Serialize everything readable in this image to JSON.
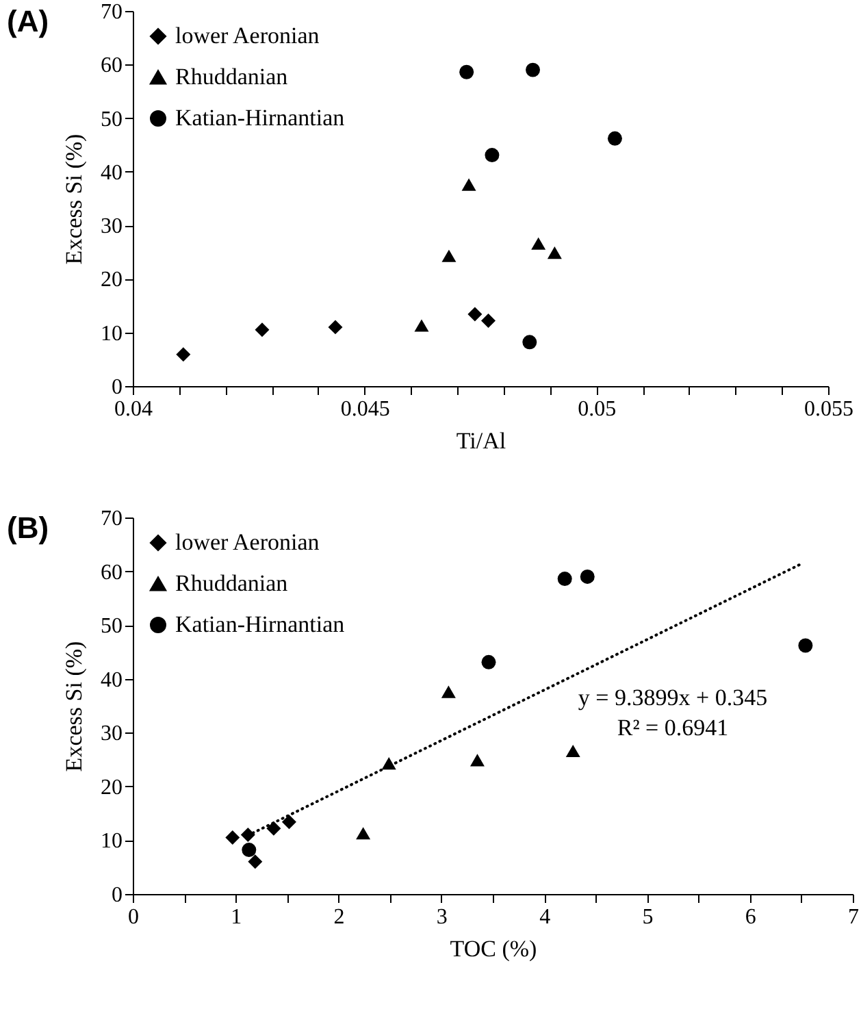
{
  "chart_data": [
    {
      "type": "scatter",
      "title": "(A)",
      "xlabel": "Ti/Al",
      "ylabel": "Excess Si (%)",
      "legend": "top left",
      "grid": false,
      "xlim": [
        0.04,
        0.055
      ],
      "xticks": [
        0.04,
        {
          "value": 0.041,
          "label": null
        },
        {
          "value": 0.042,
          "label": null
        },
        {
          "value": 0.043,
          "label": null
        },
        {
          "value": 0.044,
          "label": null
        },
        0.045,
        {
          "value": 0.046,
          "label": null
        },
        {
          "value": 0.047,
          "label": null
        },
        {
          "value": 0.048,
          "label": null
        },
        {
          "value": 0.049,
          "label": null
        },
        0.05,
        {
          "value": 0.051,
          "label": null
        },
        {
          "value": 0.052,
          "label": null
        },
        {
          "value": 0.053,
          "label": null
        },
        {
          "value": 0.054,
          "label": null
        },
        0.055
      ],
      "ylim": [
        0,
        70
      ],
      "yticks": [
        0,
        10,
        20,
        30,
        40,
        50,
        60,
        70
      ],
      "series": [
        {
          "name": "lower Aeronian",
          "color": "#000000",
          "marker": "diamond",
          "x": [
            0.04109,
            0.04279,
            0.04437,
            0.04738,
            0.04767
          ],
          "values": [
            5.9,
            10.5,
            11.0,
            13.4,
            12.2
          ]
        },
        {
          "name": "Rhuddanian",
          "color": "#000000",
          "marker": "triangle",
          "x": [
            0.04623,
            0.04682,
            0.04725,
            0.04875,
            0.0491
          ],
          "values": [
            11.3,
            24.3,
            37.6,
            26.6,
            24.9
          ]
        },
        {
          "name": "Katian-Hirnantian",
          "color": "#000000",
          "marker": "circle",
          "x": [
            0.0472,
            0.04863,
            0.04775,
            0.0504,
            0.04856
          ],
          "values": [
            58.6,
            59.0,
            43.1,
            46.2,
            8.2
          ]
        }
      ]
    },
    {
      "type": "scatter",
      "title": "(B)",
      "xlabel": "TOC (%)",
      "ylabel": "Excess Si (%)",
      "legend": "top left",
      "grid": false,
      "xlim": [
        0,
        7
      ],
      "xticks": [
        0,
        {
          "value": 0.5,
          "label": null
        },
        1,
        {
          "value": 1.5,
          "label": null
        },
        2,
        {
          "value": 2.5,
          "label": null
        },
        3,
        {
          "value": 3.5,
          "label": null
        },
        4,
        {
          "value": 4.5,
          "label": null
        },
        5,
        {
          "value": 5.5,
          "label": null
        },
        6,
        {
          "value": 6.5,
          "label": null
        },
        7
      ],
      "ylim": [
        0,
        70
      ],
      "yticks": [
        0,
        10,
        20,
        30,
        40,
        50,
        60,
        70
      ],
      "annotations": [
        "y = 9.3899x + 0.345",
        "R² = 0.6941"
      ],
      "series": [
        {
          "name": "lower Aeronian",
          "color": "#000000",
          "marker": "diamond",
          "x": [
            1.19,
            0.97,
            1.12,
            1.37,
            1.52
          ],
          "values": [
            6.0,
            10.5,
            11.0,
            12.2,
            13.4
          ]
        },
        {
          "name": "Rhuddanian",
          "color": "#000000",
          "marker": "triangle",
          "x": [
            2.24,
            2.49,
            3.07,
            4.28,
            3.35
          ],
          "values": [
            11.3,
            24.3,
            37.6,
            26.6,
            24.9
          ]
        },
        {
          "name": "Katian-Hirnantian",
          "color": "#000000",
          "marker": "circle",
          "x": [
            4.2,
            4.42,
            3.46,
            6.54,
            1.13
          ],
          "values": [
            58.6,
            59.0,
            43.1,
            46.2,
            8.2
          ]
        },
        {
          "type": "line",
          "color": "#000000",
          "line_style": "dotted",
          "x": [
            1.12,
            6.49
          ],
          "values": [
            10.9,
            61.3
          ]
        }
      ]
    }
  ]
}
